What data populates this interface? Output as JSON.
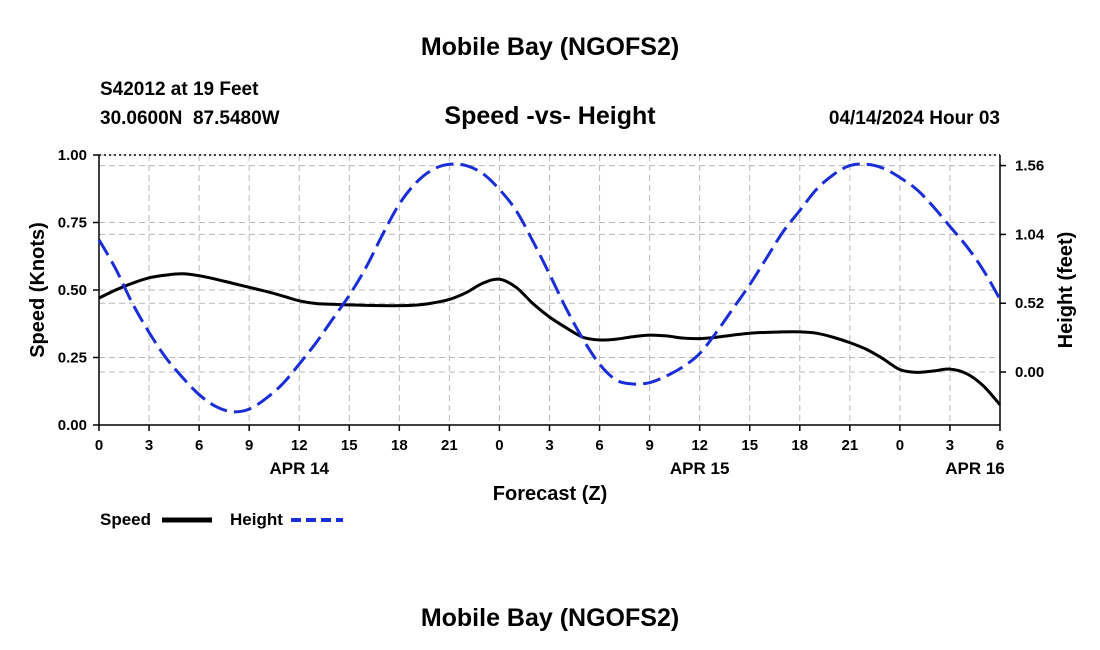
{
  "page": {
    "top_title": "Mobile Bay (NGOFS2)",
    "bottom_title": "Mobile Bay (NGOFS2)"
  },
  "chart_data": {
    "type": "line",
    "title": "Speed -vs- Height",
    "station_line": "S42012 at 19 Feet",
    "coords_line": "30.0600N  87.5480W",
    "timestamp": "04/14/2024 Hour 03",
    "xlabel": "Forecast (Z)",
    "ylabel_left": "Speed (Knots)",
    "ylabel_right": "Height (feet)",
    "x_range_hours": [
      0,
      54
    ],
    "x_ticks": [
      {
        "h": 0,
        "label": "0"
      },
      {
        "h": 3,
        "label": "3"
      },
      {
        "h": 6,
        "label": "6"
      },
      {
        "h": 9,
        "label": "9"
      },
      {
        "h": 12,
        "label": "12"
      },
      {
        "h": 15,
        "label": "15"
      },
      {
        "h": 18,
        "label": "18"
      },
      {
        "h": 21,
        "label": "21"
      },
      {
        "h": 24,
        "label": "0"
      },
      {
        "h": 27,
        "label": "3"
      },
      {
        "h": 30,
        "label": "6"
      },
      {
        "h": 33,
        "label": "9"
      },
      {
        "h": 36,
        "label": "12"
      },
      {
        "h": 39,
        "label": "15"
      },
      {
        "h": 42,
        "label": "18"
      },
      {
        "h": 45,
        "label": "21"
      },
      {
        "h": 48,
        "label": "0"
      },
      {
        "h": 51,
        "label": "3"
      },
      {
        "h": 54,
        "label": "6"
      }
    ],
    "date_labels": [
      {
        "h": 12,
        "label": "APR 14"
      },
      {
        "h": 36,
        "label": "APR 15"
      },
      {
        "h": 52.5,
        "label": "APR 16"
      }
    ],
    "y_left": {
      "range": [
        0,
        1
      ],
      "ticks": [
        0,
        0.25,
        0.5,
        0.75,
        1.0
      ],
      "tick_labels": [
        "0.00",
        "0.25",
        "0.50",
        "0.75",
        "1.00"
      ]
    },
    "y_right": {
      "range": [
        -0.4,
        1.64
      ],
      "ticks": [
        0,
        0.52,
        1.04,
        1.56
      ],
      "tick_labels": [
        "0.00",
        "0.52",
        "1.04",
        "1.56"
      ]
    },
    "series": [
      {
        "name": "Speed",
        "axis": "left",
        "color": "#000000",
        "dashed": false,
        "x": [
          0,
          1,
          2,
          3,
          4,
          5,
          6,
          7,
          8,
          9,
          10,
          11,
          12,
          13,
          14,
          15,
          16,
          17,
          18,
          19,
          20,
          21,
          22,
          23,
          24,
          25,
          26,
          27,
          28,
          29,
          30,
          31,
          32,
          33,
          34,
          35,
          36,
          37,
          38,
          39,
          40,
          41,
          42,
          43,
          44,
          45,
          46,
          47,
          48,
          49,
          50,
          51,
          52,
          53,
          54
        ],
        "values": [
          0.47,
          0.5,
          0.525,
          0.545,
          0.555,
          0.56,
          0.553,
          0.54,
          0.525,
          0.51,
          0.495,
          0.478,
          0.46,
          0.45,
          0.447,
          0.445,
          0.443,
          0.442,
          0.442,
          0.444,
          0.452,
          0.465,
          0.49,
          0.525,
          0.54,
          0.51,
          0.45,
          0.4,
          0.36,
          0.325,
          0.315,
          0.318,
          0.327,
          0.333,
          0.33,
          0.322,
          0.32,
          0.325,
          0.333,
          0.34,
          0.343,
          0.345,
          0.345,
          0.34,
          0.325,
          0.305,
          0.28,
          0.245,
          0.205,
          0.195,
          0.2,
          0.207,
          0.19,
          0.145,
          0.075
        ]
      },
      {
        "name": "Height",
        "axis": "right",
        "color": "#1a2ed8",
        "dashed": true,
        "x": [
          0,
          1,
          2,
          3,
          4,
          5,
          6,
          7,
          8,
          9,
          10,
          11,
          12,
          13,
          14,
          15,
          16,
          17,
          18,
          19,
          20,
          21,
          22,
          23,
          24,
          25,
          26,
          27,
          28,
          29,
          30,
          31,
          32,
          33,
          34,
          35,
          36,
          37,
          38,
          39,
          40,
          41,
          42,
          43,
          44,
          45,
          46,
          47,
          48,
          49,
          50,
          51,
          52,
          53,
          54
        ],
        "values": [
          1.0,
          0.78,
          0.52,
          0.3,
          0.11,
          -0.04,
          -0.17,
          -0.26,
          -0.3,
          -0.28,
          -0.2,
          -0.09,
          0.06,
          0.22,
          0.4,
          0.58,
          0.79,
          1.04,
          1.27,
          1.43,
          1.53,
          1.57,
          1.56,
          1.5,
          1.38,
          1.22,
          0.99,
          0.74,
          0.48,
          0.25,
          0.06,
          -0.06,
          -0.09,
          -0.08,
          -0.03,
          0.04,
          0.14,
          0.3,
          0.48,
          0.66,
          0.86,
          1.06,
          1.22,
          1.38,
          1.49,
          1.56,
          1.57,
          1.54,
          1.47,
          1.38,
          1.25,
          1.1,
          0.95,
          0.77,
          0.55
        ]
      }
    ],
    "legend": [
      {
        "label": "Speed",
        "color": "#000000",
        "dashed": false
      },
      {
        "label": "Height",
        "color": "#1a2ed8",
        "dashed": true
      }
    ],
    "grid": true
  }
}
